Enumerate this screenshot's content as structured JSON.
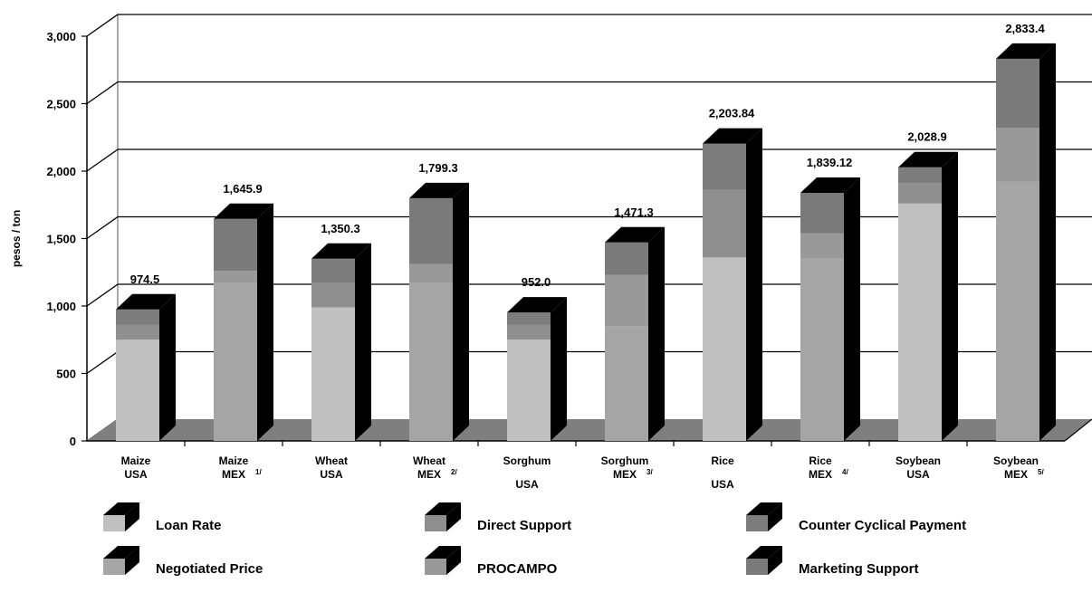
{
  "chart_data": {
    "type": "bar",
    "stacked": true,
    "style": "3d",
    "ylabel": "pesos / ton",
    "ylim": [
      0,
      3000
    ],
    "yticks": [
      0,
      500,
      1000,
      1500,
      2000,
      2500,
      3000
    ],
    "ytick_labels": [
      "0",
      "500",
      "1,000",
      "1,500",
      "2,000",
      "2,500",
      "3,000"
    ],
    "grid": true,
    "legend_position": "bottom",
    "categories": [
      {
        "line1": "Maize",
        "line2": "USA",
        "note": ""
      },
      {
        "line1": "Maize",
        "line2": "MEX",
        "note": "1/"
      },
      {
        "line1": "Wheat",
        "line2": "USA",
        "note": ""
      },
      {
        "line1": "Wheat",
        "line2": "MEX",
        "note": "2/"
      },
      {
        "line1": "Sorghum",
        "line2": "USA",
        "note": ""
      },
      {
        "line1": "Sorghum",
        "line2": "MEX",
        "note": "3/"
      },
      {
        "line1": "Rice",
        "line2": "USA",
        "note": ""
      },
      {
        "line1": "Rice",
        "line2": "MEX",
        "note": "4/"
      },
      {
        "line1": "Soybean",
        "line2": "USA",
        "note": ""
      },
      {
        "line1": "Soybean",
        "line2": "MEX",
        "note": "5/"
      }
    ],
    "totals": [
      "974.5",
      "1,645.9",
      "1,350.3",
      "1,799.3",
      "952.0",
      "1,471.3",
      "2,203.84",
      "1,839.12",
      "2,028.9",
      "2,833.4"
    ],
    "series": [
      {
        "name": "Loan Rate",
        "color": "#c0c0c0",
        "values": [
          750,
          0,
          990,
          0,
          750,
          0,
          1360,
          0,
          1760,
          0
        ]
      },
      {
        "name": "Negotiated Price",
        "color": "#a5a5a5",
        "values": [
          0,
          1170,
          0,
          1170,
          0,
          850,
          0,
          1350,
          0,
          1920
        ]
      },
      {
        "name": "Direct Support",
        "color": "#8f8f8f",
        "values": [
          110,
          0,
          180,
          0,
          110,
          0,
          500,
          0,
          150,
          0
        ]
      },
      {
        "name": "PROCAMPO",
        "color": "#999999",
        "values": [
          0,
          90,
          0,
          140,
          0,
          380,
          0,
          190,
          0,
          400
        ]
      },
      {
        "name": "Counter Cyclical Payment",
        "color": "#7d7d7d",
        "values": [
          114.5,
          0,
          180.3,
          0,
          92,
          0,
          343.84,
          0,
          118.9,
          0
        ]
      },
      {
        "name": "Marketing Support",
        "color": "#7a7a7a",
        "values": [
          0,
          385.9,
          0,
          489.3,
          0,
          241.3,
          0,
          299.12,
          0,
          513.4
        ]
      }
    ]
  }
}
